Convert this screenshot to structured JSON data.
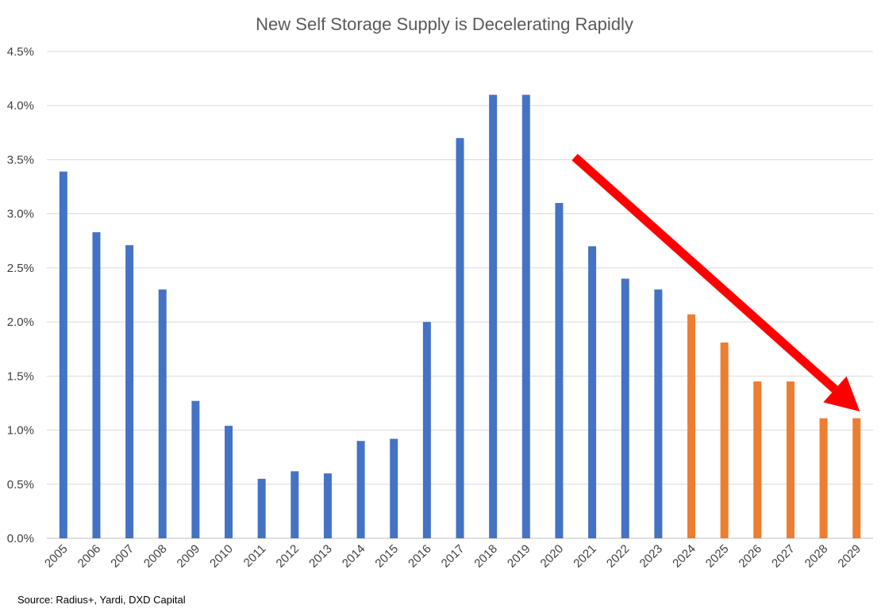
{
  "chart_data": {
    "type": "bar",
    "title": "New Self Storage Supply is Decelerating Rapidly",
    "xlabel": "",
    "ylabel": "",
    "categories": [
      "2005",
      "2006",
      "2007",
      "2008",
      "2009",
      "2010",
      "2011",
      "2012",
      "2013",
      "2014",
      "2015",
      "2016",
      "2017",
      "2018",
      "2019",
      "2020",
      "2021",
      "2022",
      "2023",
      "2024",
      "2025",
      "2026",
      "2027",
      "2028",
      "2029"
    ],
    "values": [
      3.39,
      2.83,
      2.71,
      2.3,
      1.27,
      1.04,
      0.55,
      0.62,
      0.6,
      0.9,
      0.92,
      2.0,
      3.7,
      4.1,
      4.1,
      3.1,
      2.7,
      2.4,
      2.3,
      2.07,
      1.81,
      1.45,
      1.45,
      1.11,
      1.11
    ],
    "forecast_from": "2024",
    "colors": {
      "actual": "#4472c4",
      "forecast": "#ed7d31",
      "arrow": "#ff0000"
    },
    "ylim": [
      0,
      4.5
    ],
    "yticks": [
      0,
      0.5,
      1.0,
      1.5,
      2.0,
      2.5,
      3.0,
      3.5,
      4.0,
      4.5
    ],
    "ytick_labels": [
      "0.0%",
      "0.5%",
      "1.0%",
      "1.5%",
      "2.0%",
      "2.5%",
      "3.0%",
      "3.5%",
      "4.0%",
      "4.5%"
    ],
    "grid": true,
    "annotation": {
      "type": "arrow",
      "from": {
        "x": "2021",
        "y": 3.4
      },
      "to": {
        "x": "2029",
        "y": 1.4
      }
    },
    "source": "Source: Radius+, Yardi,  DXD Capital"
  }
}
